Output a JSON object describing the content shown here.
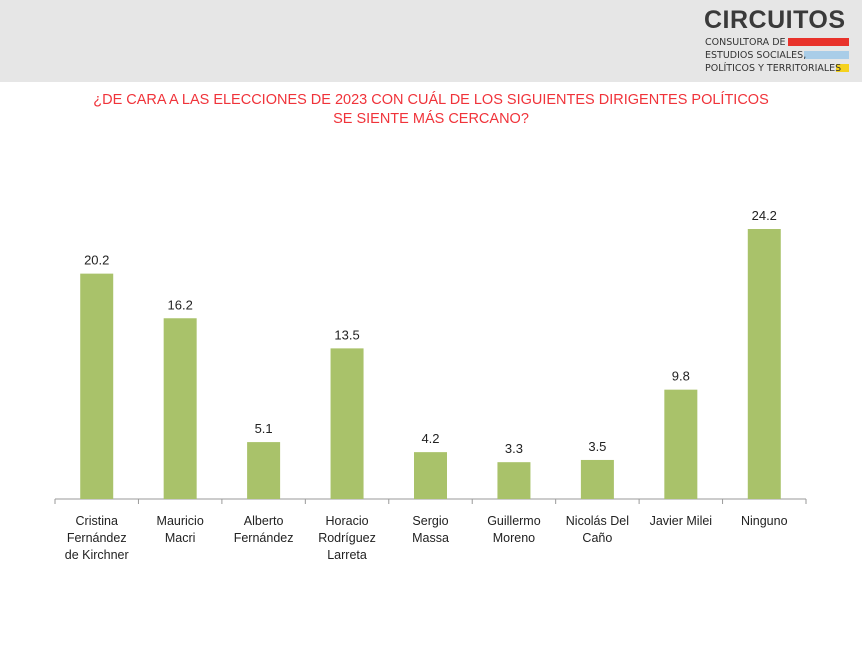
{
  "logo": {
    "name": "CIRCUITOS",
    "lines": [
      "CONSULTORA DE",
      "ESTUDIOS SOCIALES,",
      "POLÍTICOS Y TERRITORIALES"
    ],
    "bar_colors": [
      "#e8322b",
      "#a9cde8",
      "#f5d21e"
    ]
  },
  "question": {
    "lines": [
      "¿DE CARA A LAS ELECCIONES DE 2023 CON CUÁL DE LOS SIGUIENTES DIRIGENTES POLÍTICOS",
      "SE SIENTE MÁS CERCANO?"
    ],
    "color": "#f0333a"
  },
  "chart_data": {
    "type": "bar",
    "categories": [
      "Cristina Fernández de Kirchner",
      "Mauricio Macri",
      "Alberto Fernández",
      "Horacio Rodríguez Larreta",
      "Sergio Massa",
      "Guillermo Moreno",
      "Nicolás Del Caño",
      "Javier Milei",
      "Ninguno"
    ],
    "category_lines": [
      [
        "Cristina",
        "Fernández",
        "de Kirchner"
      ],
      [
        "Mauricio",
        "Macri"
      ],
      [
        "Alberto",
        "Fernández"
      ],
      [
        "Horacio",
        "Rodríguez",
        "Larreta"
      ],
      [
        "Sergio",
        "Massa"
      ],
      [
        "Guillermo",
        "Moreno"
      ],
      [
        "Nicolás Del",
        "Caño"
      ],
      [
        "Javier Milei"
      ],
      [
        "Ninguno"
      ]
    ],
    "values": [
      20.2,
      16.2,
      5.1,
      13.5,
      4.2,
      3.3,
      3.5,
      9.8,
      24.2
    ],
    "data_labels": [
      "20.2",
      "16.2",
      "5.1",
      "13.5",
      "4.2",
      "3.3",
      "3.5",
      "9.8",
      "24.2"
    ],
    "ylim": [
      0,
      24.2
    ],
    "bar_color": "#a9c26a",
    "axis_color": "#9a9a9a",
    "grid": false,
    "title": "",
    "xlabel": "",
    "ylabel": ""
  }
}
